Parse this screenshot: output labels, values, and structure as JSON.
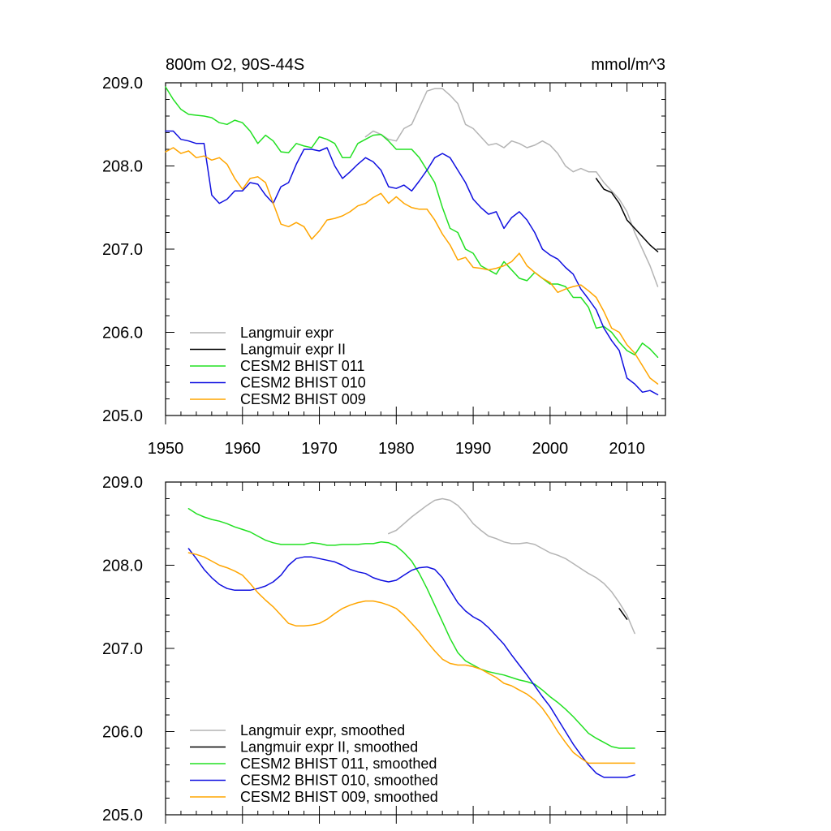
{
  "chart_data": [
    {
      "type": "line",
      "title": "800m O2, 90S-44S",
      "units": "mmol/m^3",
      "xlim": [
        1950,
        2015
      ],
      "ylim": [
        205,
        209
      ],
      "x_ticks": [
        1950,
        1960,
        1970,
        1980,
        1990,
        2000,
        2010
      ],
      "x_tick_labels": [
        "1950",
        "1960",
        "1970",
        "1980",
        "1990",
        "2000",
        "2010"
      ],
      "y_ticks": [
        205,
        206,
        207,
        208,
        209
      ],
      "y_tick_labels": [
        "205.0",
        "206.0",
        "207.0",
        "208.0",
        "209.0"
      ],
      "legend_position": "bottom-left",
      "series": [
        {
          "name": "Langmuir expr",
          "color": "#b4b4b4",
          "x": [
            1976,
            1977,
            1978,
            1979,
            1980,
            1981,
            1982,
            1983,
            1984,
            1985,
            1986,
            1987,
            1988,
            1989,
            1990,
            1991,
            1992,
            1993,
            1994,
            1995,
            1996,
            1997,
            1998,
            1999,
            2000,
            2001,
            2002,
            2003,
            2004,
            2005,
            2006,
            2007,
            2008,
            2009,
            2010,
            2011,
            2012,
            2013,
            2014
          ],
          "y": [
            208.35,
            208.42,
            208.38,
            208.32,
            208.3,
            208.45,
            208.5,
            208.7,
            208.9,
            208.93,
            208.93,
            208.85,
            208.75,
            208.5,
            208.45,
            208.35,
            208.25,
            208.27,
            208.22,
            208.3,
            208.27,
            208.22,
            208.25,
            208.3,
            208.25,
            208.15,
            208.0,
            207.93,
            207.97,
            207.93,
            207.93,
            207.8,
            207.7,
            207.6,
            207.45,
            207.2,
            207.0,
            206.8,
            206.55
          ]
        },
        {
          "name": "Langmuir expr II",
          "color": "#000000",
          "x": [
            2006,
            2007,
            2008,
            2009,
            2010,
            2011,
            2012,
            2013,
            2014
          ],
          "y": [
            207.85,
            207.72,
            207.68,
            207.55,
            207.35,
            207.25,
            207.15,
            207.05,
            206.97
          ]
        },
        {
          "name": "CESM2 BHIST 011",
          "color": "#22e022",
          "x": [
            1950,
            1951,
            1952,
            1953,
            1954,
            1955,
            1956,
            1957,
            1958,
            1959,
            1960,
            1961,
            1962,
            1963,
            1964,
            1965,
            1966,
            1967,
            1968,
            1969,
            1970,
            1971,
            1972,
            1973,
            1974,
            1975,
            1976,
            1977,
            1978,
            1979,
            1980,
            1981,
            1982,
            1983,
            1984,
            1985,
            1986,
            1987,
            1988,
            1989,
            1990,
            1991,
            1992,
            1993,
            1994,
            1995,
            1996,
            1997,
            1998,
            1999,
            2000,
            2001,
            2002,
            2003,
            2004,
            2005,
            2006,
            2007,
            2008,
            2009,
            2010,
            2011,
            2012,
            2013,
            2014
          ],
          "y": [
            208.95,
            208.8,
            208.68,
            208.62,
            208.61,
            208.6,
            208.58,
            208.52,
            208.5,
            208.55,
            208.52,
            208.42,
            208.27,
            208.37,
            208.3,
            208.17,
            208.16,
            208.27,
            208.24,
            208.22,
            208.35,
            208.32,
            208.27,
            208.1,
            208.1,
            208.27,
            208.32,
            208.37,
            208.38,
            208.3,
            208.2,
            208.2,
            208.2,
            208.1,
            207.95,
            207.8,
            207.5,
            207.25,
            207.2,
            207.0,
            206.95,
            206.8,
            206.75,
            206.7,
            206.85,
            206.75,
            206.65,
            206.62,
            206.72,
            206.65,
            206.58,
            206.58,
            206.55,
            206.42,
            206.42,
            206.3,
            206.05,
            206.07,
            206.0,
            205.88,
            205.78,
            205.73,
            205.87,
            205.8,
            205.7
          ]
        },
        {
          "name": "CESM2 BHIST 010",
          "color": "#1010e0",
          "x": [
            1950,
            1951,
            1952,
            1953,
            1954,
            1955,
            1956,
            1957,
            1958,
            1959,
            1960,
            1961,
            1962,
            1963,
            1964,
            1965,
            1966,
            1967,
            1968,
            1969,
            1970,
            1971,
            1972,
            1973,
            1974,
            1975,
            1976,
            1977,
            1978,
            1979,
            1980,
            1981,
            1982,
            1983,
            1984,
            1985,
            1986,
            1987,
            1988,
            1989,
            1990,
            1991,
            1992,
            1993,
            1994,
            1995,
            1996,
            1997,
            1998,
            1999,
            2000,
            2001,
            2002,
            2003,
            2004,
            2005,
            2006,
            2007,
            2008,
            2009,
            2010,
            2011,
            2012,
            2013,
            2014
          ],
          "y": [
            208.42,
            208.42,
            208.32,
            208.3,
            208.27,
            208.27,
            207.65,
            207.55,
            207.6,
            207.7,
            207.7,
            207.8,
            207.78,
            207.65,
            207.55,
            207.75,
            207.8,
            208.02,
            208.2,
            208.2,
            208.18,
            208.22,
            208.0,
            207.85,
            207.93,
            208.02,
            208.1,
            208.05,
            207.95,
            207.75,
            207.73,
            207.77,
            207.7,
            207.82,
            207.95,
            208.1,
            208.15,
            208.1,
            207.95,
            207.8,
            207.6,
            207.5,
            207.42,
            207.45,
            207.25,
            207.38,
            207.45,
            207.35,
            207.2,
            207.0,
            206.93,
            206.88,
            206.78,
            206.7,
            206.52,
            206.4,
            206.27,
            206.05,
            205.9,
            205.78,
            205.45,
            205.38,
            205.28,
            205.3,
            205.25
          ]
        },
        {
          "name": "CESM2 BHIST 009",
          "color": "#ffa500",
          "x": [
            1950,
            1951,
            1952,
            1953,
            1954,
            1955,
            1956,
            1957,
            1958,
            1959,
            1960,
            1961,
            1962,
            1963,
            1964,
            1965,
            1966,
            1967,
            1968,
            1969,
            1970,
            1971,
            1972,
            1973,
            1974,
            1975,
            1976,
            1977,
            1978,
            1979,
            1980,
            1981,
            1982,
            1983,
            1984,
            1985,
            1986,
            1987,
            1988,
            1989,
            1990,
            1991,
            1992,
            1993,
            1994,
            1995,
            1996,
            1997,
            1998,
            1999,
            2000,
            2001,
            2002,
            2003,
            2004,
            2005,
            2006,
            2007,
            2008,
            2009,
            2010,
            2011,
            2012,
            2013,
            2014
          ],
          "y": [
            208.17,
            208.22,
            208.15,
            208.18,
            208.1,
            208.12,
            208.07,
            208.1,
            208.02,
            207.85,
            207.72,
            207.85,
            207.87,
            207.8,
            207.55,
            207.3,
            207.27,
            207.32,
            207.27,
            207.12,
            207.22,
            207.35,
            207.37,
            207.4,
            207.45,
            207.52,
            207.55,
            207.62,
            207.67,
            207.55,
            207.63,
            207.55,
            207.5,
            207.48,
            207.48,
            207.35,
            207.18,
            207.05,
            206.87,
            206.9,
            206.78,
            206.77,
            206.75,
            206.77,
            206.8,
            206.85,
            206.95,
            206.8,
            206.72,
            206.65,
            206.6,
            206.48,
            206.52,
            206.55,
            206.57,
            206.5,
            206.42,
            206.25,
            206.05,
            206.0,
            205.85,
            205.75,
            205.6,
            205.45,
            205.38
          ]
        }
      ]
    },
    {
      "type": "line",
      "xlim": [
        1950,
        2015
      ],
      "ylim": [
        205,
        209
      ],
      "y_ticks": [
        205,
        206,
        207,
        208,
        209
      ],
      "y_tick_labels": [
        "205.0",
        "206.0",
        "207.0",
        "208.0",
        "209.0"
      ],
      "legend_position": "bottom-left",
      "series": [
        {
          "name": "Langmuir expr, smoothed",
          "color": "#b4b4b4",
          "x": [
            1979,
            1980,
            1981,
            1982,
            1983,
            1984,
            1985,
            1986,
            1987,
            1988,
            1989,
            1990,
            1991,
            1992,
            1993,
            1994,
            1995,
            1996,
            1997,
            1998,
            1999,
            2000,
            2001,
            2002,
            2003,
            2004,
            2005,
            2006,
            2007,
            2008,
            2009,
            2010,
            2011
          ],
          "y": [
            208.38,
            208.42,
            208.5,
            208.58,
            208.65,
            208.72,
            208.78,
            208.8,
            208.78,
            208.72,
            208.62,
            208.5,
            208.42,
            208.35,
            208.32,
            208.28,
            208.26,
            208.26,
            208.27,
            208.25,
            208.2,
            208.15,
            208.12,
            208.08,
            208.02,
            207.96,
            207.9,
            207.85,
            207.78,
            207.68,
            207.55,
            207.4,
            207.18
          ]
        },
        {
          "name": "Langmuir expr II, smoothed",
          "color": "#000000",
          "x": [
            2009,
            2010
          ],
          "y": [
            207.48,
            207.35
          ]
        },
        {
          "name": "CESM2 BHIST 011, smoothed",
          "color": "#22e022",
          "x": [
            1953,
            1954,
            1955,
            1956,
            1957,
            1958,
            1959,
            1960,
            1961,
            1962,
            1963,
            1964,
            1965,
            1966,
            1967,
            1968,
            1969,
            1970,
            1971,
            1972,
            1973,
            1974,
            1975,
            1976,
            1977,
            1978,
            1979,
            1980,
            1981,
            1982,
            1983,
            1984,
            1985,
            1986,
            1987,
            1988,
            1989,
            1990,
            1991,
            1992,
            1993,
            1994,
            1995,
            1996,
            1997,
            1998,
            1999,
            2000,
            2001,
            2002,
            2003,
            2004,
            2005,
            2006,
            2007,
            2008,
            2009,
            2010,
            2011
          ],
          "y": [
            208.68,
            208.62,
            208.58,
            208.55,
            208.53,
            208.5,
            208.46,
            208.43,
            208.4,
            208.35,
            208.3,
            208.27,
            208.25,
            208.25,
            208.25,
            208.25,
            208.27,
            208.26,
            208.24,
            208.24,
            208.25,
            208.25,
            208.25,
            208.26,
            208.26,
            208.28,
            208.27,
            208.23,
            208.15,
            208.05,
            207.9,
            207.72,
            207.52,
            207.32,
            207.12,
            206.95,
            206.85,
            206.8,
            206.75,
            206.72,
            206.7,
            206.68,
            206.65,
            206.62,
            206.6,
            206.57,
            206.5,
            206.42,
            206.35,
            206.27,
            206.18,
            206.08,
            205.98,
            205.92,
            205.87,
            205.82,
            205.8,
            205.8,
            205.8
          ]
        },
        {
          "name": "CESM2 BHIST 010, smoothed",
          "color": "#1010e0",
          "x": [
            1953,
            1954,
            1955,
            1956,
            1957,
            1958,
            1959,
            1960,
            1961,
            1962,
            1963,
            1964,
            1965,
            1966,
            1967,
            1968,
            1969,
            1970,
            1971,
            1972,
            1973,
            1974,
            1975,
            1976,
            1977,
            1978,
            1979,
            1980,
            1981,
            1982,
            1983,
            1984,
            1985,
            1986,
            1987,
            1988,
            1989,
            1990,
            1991,
            1992,
            1993,
            1994,
            1995,
            1996,
            1997,
            1998,
            1999,
            2000,
            2001,
            2002,
            2003,
            2004,
            2005,
            2006,
            2007,
            2008,
            2009,
            2010,
            2011
          ],
          "y": [
            208.2,
            208.08,
            207.95,
            207.85,
            207.77,
            207.72,
            207.7,
            207.7,
            207.7,
            207.72,
            207.75,
            207.8,
            207.88,
            208.0,
            208.08,
            208.1,
            208.1,
            208.08,
            208.06,
            208.04,
            208.0,
            207.95,
            207.92,
            207.9,
            207.85,
            207.82,
            207.8,
            207.82,
            207.88,
            207.94,
            207.97,
            207.98,
            207.95,
            207.85,
            207.7,
            207.55,
            207.45,
            207.38,
            207.33,
            207.25,
            207.15,
            207.05,
            206.92,
            206.8,
            206.68,
            206.55,
            206.42,
            206.3,
            206.15,
            206.0,
            205.85,
            205.72,
            205.6,
            205.5,
            205.45,
            205.45,
            205.45,
            205.45,
            205.48
          ]
        },
        {
          "name": "CESM2 BHIST 009, smoothed",
          "color": "#ffa500",
          "x": [
            1953,
            1954,
            1955,
            1956,
            1957,
            1958,
            1959,
            1960,
            1961,
            1962,
            1963,
            1964,
            1965,
            1966,
            1967,
            1968,
            1969,
            1970,
            1971,
            1972,
            1973,
            1974,
            1975,
            1976,
            1977,
            1978,
            1979,
            1980,
            1981,
            1982,
            1983,
            1984,
            1985,
            1986,
            1987,
            1988,
            1989,
            1990,
            1991,
            1992,
            1993,
            1994,
            1995,
            1996,
            1997,
            1998,
            1999,
            2000,
            2001,
            2002,
            2003,
            2004,
            2005,
            2006,
            2007,
            2008,
            2009,
            2010,
            2011
          ],
          "y": [
            208.15,
            208.13,
            208.1,
            208.05,
            208.0,
            207.97,
            207.93,
            207.88,
            207.78,
            207.67,
            207.58,
            207.5,
            207.4,
            207.3,
            207.27,
            207.27,
            207.28,
            207.3,
            207.35,
            207.42,
            207.48,
            207.52,
            207.55,
            207.57,
            207.57,
            207.55,
            207.52,
            207.48,
            207.4,
            207.3,
            207.2,
            207.08,
            206.97,
            206.87,
            206.82,
            206.8,
            206.8,
            206.78,
            206.75,
            206.7,
            206.65,
            206.58,
            206.55,
            206.5,
            206.45,
            206.38,
            206.28,
            206.15,
            206.0,
            205.87,
            205.75,
            205.68,
            205.62,
            205.62,
            205.62,
            205.62,
            205.62,
            205.62,
            205.62
          ]
        }
      ]
    }
  ]
}
